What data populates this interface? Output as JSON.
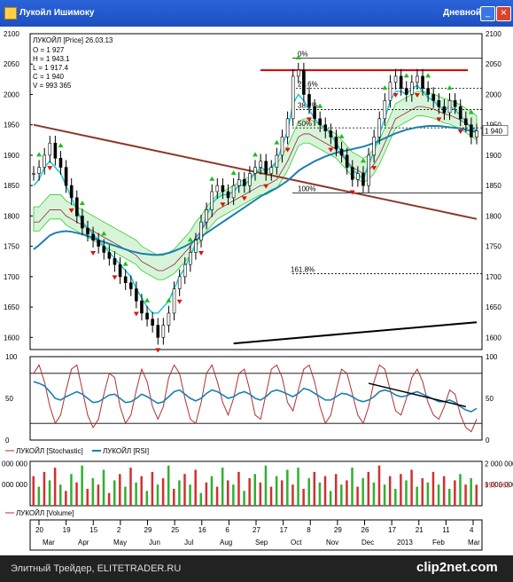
{
  "window": {
    "title": "Лукойл Ишимоку",
    "period": "Дневной",
    "buttons": {
      "minimize": "_",
      "maximize": "□",
      "close": "×"
    }
  },
  "footer": {
    "source": "Элитный Трейдер, ELITETRADER.RU",
    "logo": "clip2net.com"
  },
  "chart_data": [
    {
      "type": "line",
      "panel": "price",
      "legend_title": "ЛУКОЙЛ [Price] 26.03.13",
      "ohlc_box": [
        "O = 1 927",
        "H = 1 943.1",
        "L = 1 917.4",
        "C = 1 940",
        "V = 993 365"
      ],
      "last_value": "1 940",
      "ylim": [
        1580,
        2100
      ],
      "y_ticks": [
        "2100",
        "2050",
        "2000",
        "1950",
        "1900",
        "1850",
        "1800",
        "1750",
        "1700",
        "1650",
        "1600"
      ],
      "close": [
        1870,
        1880,
        1900,
        1920,
        1895,
        1880,
        1850,
        1830,
        1800,
        1780,
        1770,
        1760,
        1750,
        1740,
        1730,
        1720,
        1700,
        1690,
        1680,
        1660,
        1640,
        1630,
        1620,
        1600,
        1620,
        1640,
        1680,
        1700,
        1720,
        1740,
        1760,
        1790,
        1810,
        1840,
        1850,
        1840,
        1830,
        1850,
        1860,
        1850,
        1870,
        1880,
        1890,
        1870,
        1880,
        1900,
        1930,
        1960,
        2030,
        2040,
        2000,
        1980,
        1960,
        1950,
        1940,
        1930,
        1910,
        1900,
        1880,
        1860,
        1870,
        1850,
        1900,
        1930,
        1960,
        1990,
        2020,
        2030,
        2010,
        2000,
        2020,
        2030,
        2010,
        2000,
        1990,
        1980,
        1970,
        1990,
        1980,
        1960,
        1950,
        1930,
        1940
      ],
      "tenkan": [
        1850,
        1860,
        1880,
        1890,
        1880,
        1870,
        1850,
        1830,
        1810,
        1790,
        1780,
        1770,
        1760,
        1750,
        1740,
        1730,
        1720,
        1710,
        1700,
        1680,
        1665,
        1650,
        1640,
        1640,
        1650,
        1660,
        1680,
        1700,
        1715,
        1735,
        1755,
        1775,
        1800,
        1820,
        1830,
        1835,
        1835,
        1840,
        1850,
        1850,
        1860,
        1870,
        1880,
        1875,
        1880,
        1890,
        1915,
        1940,
        1985,
        2000,
        1990,
        1975,
        1960,
        1950,
        1945,
        1935,
        1920,
        1905,
        1890,
        1875,
        1870,
        1860,
        1885,
        1905,
        1935,
        1960,
        1990,
        2005,
        2005,
        2000,
        2010,
        2015,
        2005,
        1995,
        1990,
        1980,
        1975,
        1980,
        1975,
        1965,
        1955,
        1945,
        1940
      ],
      "kijun": [
        1790,
        1790,
        1800,
        1810,
        1810,
        1810,
        1800,
        1795,
        1790,
        1785,
        1780,
        1775,
        1770,
        1765,
        1760,
        1755,
        1750,
        1745,
        1740,
        1735,
        1725,
        1720,
        1715,
        1710,
        1710,
        1715,
        1720,
        1730,
        1740,
        1750,
        1765,
        1775,
        1790,
        1800,
        1810,
        1815,
        1820,
        1825,
        1830,
        1835,
        1840,
        1845,
        1850,
        1850,
        1855,
        1860,
        1875,
        1890,
        1910,
        1930,
        1935,
        1935,
        1930,
        1925,
        1920,
        1915,
        1910,
        1900,
        1890,
        1880,
        1875,
        1870,
        1875,
        1885,
        1900,
        1920,
        1940,
        1960,
        1965,
        1970,
        1975,
        1980,
        1980,
        1978,
        1976,
        1972,
        1968,
        1966,
        1962,
        1958,
        1952,
        1946,
        1940
      ],
      "ma_long": [
        1745,
        1752,
        1760,
        1768,
        1772,
        1774,
        1775,
        1774,
        1772,
        1770,
        1767,
        1764,
        1760,
        1757,
        1754,
        1751,
        1748,
        1745,
        1742,
        1740,
        1738,
        1737,
        1736,
        1736,
        1737,
        1739,
        1742,
        1746,
        1750,
        1755,
        1760,
        1766,
        1772,
        1778,
        1784,
        1790,
        1796,
        1802,
        1808,
        1814,
        1820,
        1826,
        1832,
        1837,
        1842,
        1846,
        1852,
        1858,
        1866,
        1874,
        1880,
        1885,
        1890,
        1894,
        1898,
        1901,
        1904,
        1906,
        1908,
        1910,
        1912,
        1914,
        1917,
        1920,
        1924,
        1928,
        1932,
        1936,
        1939,
        1942,
        1944,
        1946,
        1947,
        1948,
        1948,
        1948,
        1947,
        1946,
        1945,
        1944,
        1942,
        1940,
        1938
      ],
      "fibonacci": [
        {
          "label": "0%",
          "value": 2060
        },
        {
          "label": "23.6%",
          "value": 2010
        },
        {
          "label": "38.2%",
          "value": 1975
        },
        {
          "label": "50%",
          "value": 1945
        },
        {
          "label": "100%",
          "value": 1838
        },
        {
          "label": "161.8%",
          "value": 1705
        }
      ],
      "resistance": 2040,
      "trendline_down": {
        "from": [
          0,
          1950
        ],
        "to": [
          82,
          1795
        ]
      },
      "trendline_up": {
        "from": [
          37,
          1590
        ],
        "to": [
          82,
          1625
        ]
      },
      "green_colors": {
        "cloud": "#33cc33",
        "signal_up": "#19c019",
        "signal_down": "#e01010",
        "line_red": "#d00000",
        "trend": "#8a3a2a",
        "ma": "#1a7fb0",
        "tenkan": "#19c8d8"
      }
    },
    {
      "type": "line",
      "panel": "oscillators",
      "ylim": [
        0,
        100
      ],
      "y_ticks": [
        "100",
        "50",
        "0"
      ],
      "legend": [
        "ЛУКОЙЛ [Stochastic]",
        "ЛУКОЙЛ [RSI]"
      ],
      "stochastic": [
        80,
        90,
        70,
        40,
        20,
        30,
        60,
        85,
        90,
        60,
        30,
        15,
        25,
        55,
        80,
        75,
        40,
        20,
        30,
        60,
        85,
        70,
        40,
        25,
        40,
        75,
        90,
        80,
        50,
        25,
        20,
        45,
        80,
        90,
        70,
        45,
        30,
        50,
        80,
        85,
        60,
        30,
        25,
        55,
        85,
        90,
        75,
        45,
        35,
        60,
        85,
        90,
        70,
        40,
        20,
        30,
        60,
        85,
        80,
        55,
        30,
        20,
        40,
        70,
        90,
        85,
        60,
        35,
        30,
        50,
        75,
        85,
        70,
        45,
        30,
        25,
        40,
        60,
        55,
        30,
        15,
        10,
        25
      ],
      "rsi": [
        70,
        68,
        65,
        58,
        50,
        48,
        52,
        55,
        58,
        55,
        50,
        45,
        46,
        50,
        54,
        55,
        50,
        45,
        46,
        50,
        55,
        52,
        48,
        44,
        46,
        52,
        58,
        60,
        55,
        50,
        47,
        50,
        56,
        60,
        58,
        54,
        50,
        52,
        56,
        58,
        55,
        50,
        48,
        52,
        58,
        60,
        58,
        55,
        52,
        56,
        62,
        60,
        56,
        52,
        48,
        48,
        52,
        56,
        55,
        52,
        48,
        46,
        48,
        52,
        58,
        60,
        58,
        54,
        52,
        53,
        56,
        58,
        55,
        52,
        49,
        46,
        46,
        48,
        45,
        40,
        36,
        34,
        38
      ],
      "trendline": {
        "from": [
          62,
          68
        ],
        "to": [
          80,
          40
        ]
      }
    },
    {
      "type": "bar",
      "panel": "volume",
      "legend": "ЛУКОЙЛ [Volume]",
      "y_ticks": [
        "2 000 000",
        "1 000 000"
      ],
      "y_ticks_left": [
        "000 000",
        "000 000"
      ],
      "last_value": "993 365",
      "ylim": [
        0,
        2100000
      ],
      "values": [
        1400000,
        900000,
        1600000,
        1200000,
        1800000,
        1000000,
        700000,
        1500000,
        1100000,
        1900000,
        800000,
        1300000,
        1000000,
        1700000,
        600000,
        1200000,
        1500000,
        900000,
        1800000,
        1100000,
        1400000,
        700000,
        1600000,
        1000000,
        1300000,
        1900000,
        800000,
        1200000,
        1500000,
        1000000,
        1700000,
        600000,
        1100000,
        1400000,
        900000,
        1800000,
        1200000,
        1000000,
        1600000,
        700000,
        1300000,
        1500000,
        1100000,
        1900000,
        900000,
        1400000,
        1200000,
        1700000,
        1000000,
        1800000,
        800000,
        1300000,
        1600000,
        1100000,
        1400000,
        700000,
        1500000,
        1000000,
        1200000,
        1800000,
        900000,
        1300000,
        1600000,
        1100000,
        1900000,
        1000000,
        1400000,
        800000,
        1500000,
        1200000,
        1700000,
        900000,
        1300000,
        1100000,
        1600000,
        1000000,
        1400000,
        800000,
        1200000,
        1500000,
        1000000,
        1300000,
        993365
      ],
      "bar_colors": [
        "#d03030",
        "#30b030"
      ]
    }
  ],
  "x_axis": {
    "days": [
      "20",
      "19",
      "15",
      "2",
      "29",
      "25",
      "16",
      "6",
      "27",
      "17",
      "8",
      "29",
      "26",
      "17",
      "21",
      "11",
      "4"
    ],
    "months": [
      "Mar",
      "Apr",
      "May",
      "Jun",
      "Jul",
      "Aug",
      "Sep",
      "Oct",
      "Nov",
      "Dec",
      "2013",
      "Feb",
      "Mar"
    ]
  }
}
